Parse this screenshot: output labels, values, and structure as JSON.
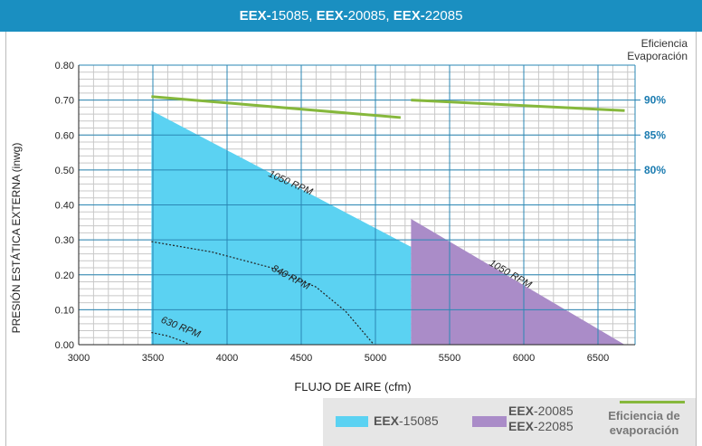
{
  "header": {
    "parts": [
      {
        "bold": "EEX-",
        "normal": "15085, "
      },
      {
        "bold": "EEX-",
        "normal": "20085, "
      },
      {
        "bold": "EEX-",
        "normal": "22085"
      }
    ]
  },
  "efficiency_axis_title": [
    "Eficiencia",
    "Evaporación"
  ],
  "legend": {
    "eex15085": {
      "bold": "EEX",
      "normal": "-15085"
    },
    "eex20085_line1": {
      "bold": "EEX",
      "normal": "-20085"
    },
    "eex20085_line2": {
      "bold": "EEX",
      "normal": "-22085"
    },
    "efficiency_line1": "Eficiencia de",
    "efficiency_line2": "evaporación"
  },
  "colors": {
    "header_bg": "#1a8fc1",
    "grid_major": "#2a87b4",
    "grid_minor": "#c8c8c8",
    "cyan_area": "#5bd2f2",
    "purple_area": "#aa8cc8",
    "efficiency_line": "#86b83c",
    "legend_bg": "#e6e6e6",
    "right_axis_text": "#1a7bb0"
  },
  "chart_data": {
    "type": "area",
    "xlabel": "FLUJO DE AIRE (cfm)",
    "ylabel": "PRESIÓN ESTÁTICA EXTERNA (inwg)",
    "xlim": [
      3000,
      6750
    ],
    "ylim": [
      0,
      0.8
    ],
    "x_ticks": [
      "3000",
      "3500",
      "4000",
      "4500",
      "5000",
      "5500",
      "6000",
      "6500"
    ],
    "y_ticks": [
      "0.00",
      "0.10",
      "0.20",
      "0.30",
      "0.40",
      "0.50",
      "0.60",
      "0.70",
      "0.80"
    ],
    "right_axis": {
      "title": [
        "Eficiencia",
        "Evaporación"
      ],
      "ticks": [
        {
          "label": "90%",
          "y": 0.7
        },
        {
          "label": "85%",
          "y": 0.6
        },
        {
          "label": "80%",
          "y": 0.5
        }
      ]
    },
    "series": [
      {
        "name": "EEX-15085",
        "kind": "area",
        "color": "#5bd2f2",
        "points": [
          [
            3490,
            0.67
          ],
          [
            3490,
            0
          ],
          [
            5240,
            0
          ],
          [
            5240,
            0.28
          ]
        ]
      },
      {
        "name": "EEX-20085 / EEX-22085",
        "kind": "area",
        "color": "#aa8cc8",
        "points": [
          [
            5240,
            0.36
          ],
          [
            5240,
            0
          ],
          [
            6680,
            0
          ]
        ]
      },
      {
        "name": "Eficiencia de evaporación",
        "kind": "line",
        "color": "#86b83c",
        "segments": [
          [
            [
              3490,
              0.71
            ],
            [
              5170,
              0.65
            ]
          ],
          [
            [
              5240,
              0.7
            ],
            [
              6680,
              0.67
            ]
          ]
        ]
      }
    ],
    "rpm_curves": [
      {
        "label": "1050 RPM",
        "points": [
          [
            3490,
            0.67
          ],
          [
            5240,
            0.28
          ]
        ],
        "style": "none"
      },
      {
        "label": "840 RPM",
        "points": [
          [
            3490,
            0.295
          ],
          [
            3900,
            0.265
          ],
          [
            4300,
            0.22
          ],
          [
            4600,
            0.165
          ],
          [
            4800,
            0.095
          ],
          [
            4990,
            0.0
          ]
        ],
        "style": "dotted"
      },
      {
        "label": "630 RPM",
        "points": [
          [
            3490,
            0.035
          ],
          [
            3600,
            0.025
          ],
          [
            3700,
            0.01
          ],
          [
            3750,
            0.0
          ]
        ],
        "style": "dotted"
      },
      {
        "label": "1050 RPM",
        "points": [
          [
            5240,
            0.36
          ],
          [
            6680,
            0.0
          ]
        ],
        "style": "none"
      }
    ],
    "annotations": [
      {
        "text": "1050 RPM",
        "x": 4420,
        "y": 0.455
      },
      {
        "text": "840 RPM",
        "x": 4420,
        "y": 0.185
      },
      {
        "text": "630 RPM",
        "x": 3680,
        "y": 0.042
      },
      {
        "text": "1050 RPM",
        "x": 5900,
        "y": 0.195
      }
    ]
  }
}
